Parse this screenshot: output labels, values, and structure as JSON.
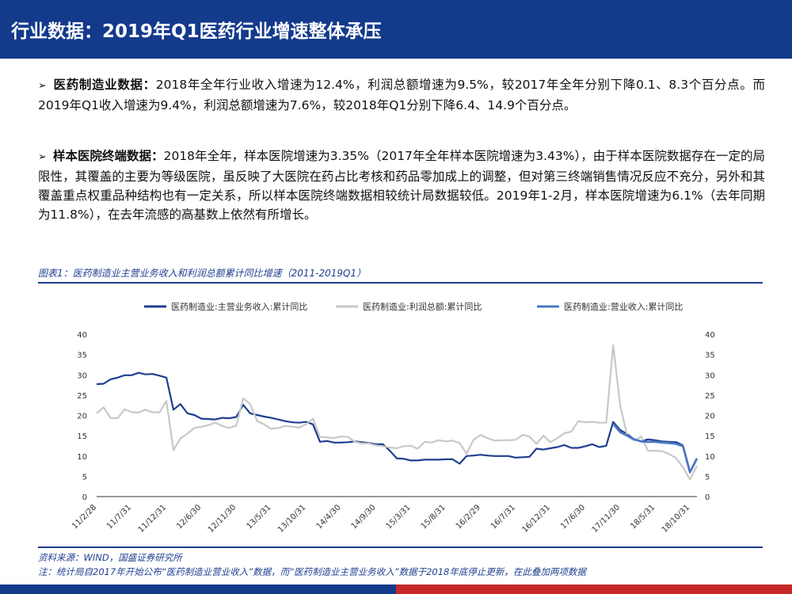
{
  "header": {
    "title": "行业数据：2019年Q1医药行业增速整体承压"
  },
  "paragraphs": [
    {
      "bullet": "➢",
      "lead": "医药制造业数据：",
      "text": "2018年全年行业收入增速为12.4%，利润总额增速为9.5%，较2017年全年分别下降0.1、8.3个百分点。而2019年Q1收入增速为9.4%，利润总额增速为7.6%，较2018年Q1分别下降6.4、14.9个百分点。"
    },
    {
      "bullet": "➢",
      "lead": "样本医院终端数据：",
      "text": "2018年全年，样本医院增速为3.35%（2017年全年样本医院增速为3.43%），由于样本医院数据存在一定的局限性，其覆盖的主要为等级医院，虽反映了大医院在药占比考核和药品零加成上的调整，但对第三终端销售情况反应不充分，另外和其覆盖重点权重品种结构也有一定关系，所以样本医院终端数据相较统计局数据较低。2019年1-2月，样本医院增速为6.1%（去年同期为11.8%），在去年流感的高基数上依然有所增长。"
    }
  ],
  "figure": {
    "caption": "图表1：医药制造业主营业务收入和利润总额累计同比增速（2011-2019Q1）",
    "source": "资料来源：WIND，国盛证券研究所",
    "note": "注：统计局自2017年开始公布“医药制造业营业收入”数据，而“医药制造业主营业务收入”数据于2018年底停止更新，在此叠加两项数据"
  },
  "colors": {
    "header": "#143a8c",
    "series1": "#1f3f8f",
    "series2": "#c8c8c8",
    "series3": "#4a78c0",
    "accent_red": "#c62828"
  },
  "chart_data": {
    "type": "line",
    "ylim": [
      0,
      40
    ],
    "yticks": [
      0,
      5,
      10,
      15,
      20,
      25,
      30,
      35,
      40
    ],
    "y2lim": [
      0,
      40
    ],
    "y2ticks": [
      0,
      5,
      10,
      15,
      20,
      25,
      30,
      35,
      40
    ],
    "legend_position": "top",
    "grid": false,
    "x_tick_labels": [
      "11/2/28",
      "11/7/31",
      "11/12/31",
      "12/6/30",
      "12/11/30",
      "13/5/31",
      "13/10/31",
      "14/4/30",
      "14/9/30",
      "15/3/31",
      "15/8/31",
      "16/2/29",
      "16/7/31",
      "16/12/31",
      "17/6/30",
      "17/11/30",
      "18/5/31",
      "18/10/31"
    ],
    "series": [
      {
        "name": "医药制造业:主营业务收入:累计同比",
        "color": "#1f3f8f",
        "x": [
          0,
          1,
          2,
          3,
          4,
          5,
          6,
          7,
          8,
          9,
          10,
          11,
          12,
          13,
          14,
          15,
          16,
          17,
          18,
          19,
          20,
          21,
          22,
          23,
          24,
          25,
          26,
          27,
          28,
          29,
          30,
          31,
          32,
          33,
          34,
          35,
          36,
          37,
          38,
          39,
          40,
          41,
          42,
          43,
          44,
          45,
          46,
          47,
          48,
          49,
          50,
          51,
          52,
          53,
          54,
          55,
          56,
          57,
          58,
          59,
          60,
          61,
          62,
          63,
          64,
          65,
          66,
          67,
          68,
          69,
          70,
          71,
          72,
          73,
          74,
          75,
          76,
          77,
          78,
          79,
          80,
          81,
          82,
          83,
          84,
          85,
          86
        ],
        "values": [
          27.7,
          27.8,
          28.9,
          29.3,
          29.9,
          29.9,
          30.5,
          30.1,
          30.2,
          29.8,
          29.3,
          21.4,
          22.8,
          20.5,
          20.1,
          19.2,
          19.1,
          19.0,
          19.4,
          19.3,
          19.6,
          22.6,
          20.5,
          20.1,
          19.7,
          19.4,
          19.0,
          18.6,
          18.3,
          18.2,
          18.4,
          17.8,
          13.5,
          13.7,
          13.3,
          13.3,
          13.4,
          13.6,
          13.4,
          13.2,
          12.9,
          12.9,
          11.3,
          9.4,
          9.3,
          8.9,
          8.9,
          9.1,
          9.1,
          9.1,
          9.2,
          9.2,
          8.1,
          10.0,
          10.1,
          10.3,
          10.1,
          10.0,
          10.0,
          10.0,
          9.6,
          9.7,
          9.8,
          11.8,
          11.6,
          11.9,
          12.2,
          12.7,
          12.0,
          12.0,
          12.4,
          12.9,
          12.2,
          12.5,
          18.4,
          16.4,
          15.4,
          14.1,
          13.6,
          14.1,
          13.9,
          13.6,
          13.5,
          13.4,
          12.6,
          null,
          null
        ]
      },
      {
        "name": "医药制造业:利润总额:累计同比",
        "color": "#c8c8c8",
        "x": [
          0,
          1,
          2,
          3,
          4,
          5,
          6,
          7,
          8,
          9,
          10,
          11,
          12,
          13,
          14,
          15,
          16,
          17,
          18,
          19,
          20,
          21,
          22,
          23,
          24,
          25,
          26,
          27,
          28,
          29,
          30,
          31,
          32,
          33,
          34,
          35,
          36,
          37,
          38,
          39,
          40,
          41,
          42,
          43,
          44,
          45,
          46,
          47,
          48,
          49,
          50,
          51,
          52,
          53,
          54,
          55,
          56,
          57,
          58,
          59,
          60,
          61,
          62,
          63,
          64,
          65,
          66,
          67,
          68,
          69,
          70,
          71,
          72,
          73,
          74,
          75,
          76,
          77,
          78,
          79,
          80,
          81,
          82,
          83,
          84,
          85,
          86
        ],
        "values": [
          20.5,
          22.0,
          19.4,
          19.3,
          21.5,
          20.8,
          20.7,
          21.4,
          20.8,
          20.7,
          23.6,
          11.4,
          14.3,
          15.5,
          16.9,
          17.2,
          17.6,
          18.2,
          17.4,
          16.9,
          17.5,
          24.2,
          22.8,
          18.6,
          17.8,
          16.7,
          16.9,
          17.4,
          17.2,
          17.0,
          17.8,
          19.2,
          14.7,
          14.6,
          14.4,
          14.8,
          14.7,
          13.5,
          13.1,
          13.1,
          12.6,
          12.4,
          12.1,
          11.9,
          12.4,
          12.5,
          11.8,
          13.5,
          13.3,
          13.9,
          13.6,
          13.8,
          13.2,
          10.6,
          14.0,
          15.2,
          14.4,
          13.8,
          13.9,
          13.9,
          14.0,
          15.2,
          14.8,
          13.0,
          15.0,
          13.4,
          14.4,
          15.6,
          16.0,
          18.6,
          18.3,
          18.4,
          18.2,
          18.2,
          37.3,
          22.6,
          15.0,
          13.8,
          14.8,
          11.3,
          11.3,
          11.2,
          10.5,
          9.5,
          7.2,
          4.2,
          7.6
        ]
      },
      {
        "name": "医药制造业:营业收入:累计同比",
        "color": "#4a78c0",
        "x": [
          74,
          75,
          76,
          77,
          78,
          79,
          80,
          81,
          82,
          83,
          84,
          85,
          86
        ],
        "values": [
          17.9,
          15.9,
          15.0,
          14.1,
          13.6,
          13.5,
          13.5,
          13.3,
          13.2,
          13.0,
          12.4,
          6.0,
          9.4
        ]
      }
    ]
  }
}
